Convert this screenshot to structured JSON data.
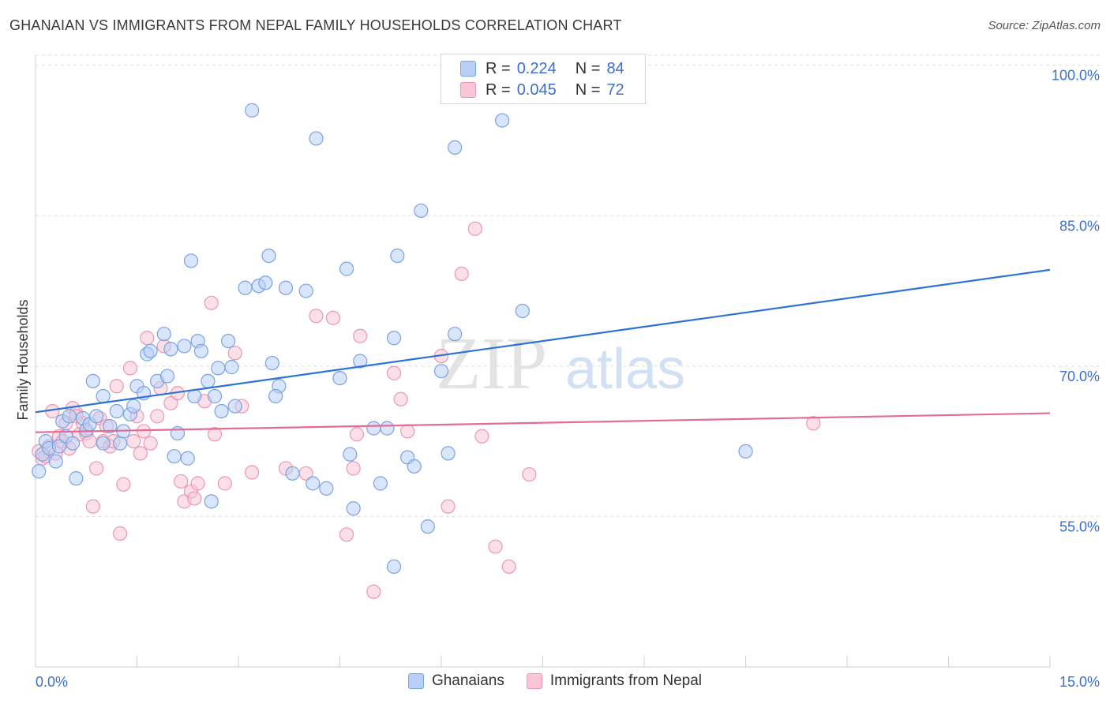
{
  "title": "GHANAIAN VS IMMIGRANTS FROM NEPAL FAMILY HOUSEHOLDS CORRELATION CHART",
  "source": "Source: ZipAtlas.com",
  "watermark": {
    "part1": "ZIP",
    "part2": "atlas"
  },
  "colors": {
    "blue_fill": "#b8d0f5",
    "blue_stroke": "#7aa3e0",
    "blue_line": "#2f72d6",
    "pink_fill": "#f8c6d6",
    "pink_stroke": "#eb97b4",
    "pink_line": "#e46b93",
    "axis_label": "#3b6fd0",
    "grid": "#dcdcdc"
  },
  "legend_top": {
    "rows": [
      {
        "r_label": "R =",
        "r_value": "0.224",
        "n_label": "N =",
        "n_value": "84"
      },
      {
        "r_label": "R =",
        "r_value": "0.045",
        "n_label": "N =",
        "n_value": "72"
      }
    ]
  },
  "chart_data": {
    "type": "scatter",
    "title": "GHANAIAN VS IMMIGRANTS FROM NEPAL FAMILY HOUSEHOLDS CORRELATION CHART",
    "xlabel": "",
    "ylabel": "Family Households",
    "xlim": [
      0.0,
      15.0
    ],
    "ylim": [
      40.0,
      101.0
    ],
    "x_tick_labels": [
      "0.0%",
      "15.0%"
    ],
    "y_ticks": [
      55.0,
      70.0,
      85.0,
      100.0
    ],
    "y_tick_labels": [
      "55.0%",
      "70.0%",
      "85.0%",
      "100.0%"
    ],
    "grid": true,
    "legend_position": "top-center",
    "series": [
      {
        "name": "Ghanaians",
        "color": "#b8d0f5",
        "trend": {
          "x": [
            0.0,
            15.0
          ],
          "y": [
            65.4,
            79.6
          ]
        },
        "points": [
          [
            0.05,
            59.5
          ],
          [
            0.1,
            61.2
          ],
          [
            0.15,
            62.5
          ],
          [
            0.2,
            61.8
          ],
          [
            0.3,
            60.5
          ],
          [
            0.35,
            62.0
          ],
          [
            0.4,
            64.5
          ],
          [
            0.45,
            63.0
          ],
          [
            0.5,
            65.0
          ],
          [
            0.55,
            62.3
          ],
          [
            0.6,
            58.8
          ],
          [
            0.7,
            64.8
          ],
          [
            0.75,
            63.6
          ],
          [
            0.8,
            64.2
          ],
          [
            0.85,
            68.5
          ],
          [
            0.9,
            65.0
          ],
          [
            1.0,
            62.3
          ],
          [
            1.0,
            67.0
          ],
          [
            1.1,
            64.0
          ],
          [
            1.2,
            65.5
          ],
          [
            1.25,
            62.3
          ],
          [
            1.3,
            63.5
          ],
          [
            1.4,
            65.2
          ],
          [
            1.45,
            66.0
          ],
          [
            1.5,
            68.0
          ],
          [
            1.6,
            67.3
          ],
          [
            1.65,
            71.2
          ],
          [
            1.7,
            71.5
          ],
          [
            1.8,
            68.5
          ],
          [
            1.9,
            73.2
          ],
          [
            1.95,
            69.0
          ],
          [
            2.0,
            71.7
          ],
          [
            2.05,
            61.0
          ],
          [
            2.1,
            63.3
          ],
          [
            2.2,
            72.0
          ],
          [
            2.25,
            60.8
          ],
          [
            2.3,
            80.5
          ],
          [
            2.35,
            67.0
          ],
          [
            2.4,
            72.5
          ],
          [
            2.45,
            71.5
          ],
          [
            2.55,
            68.5
          ],
          [
            2.6,
            56.5
          ],
          [
            2.65,
            67.0
          ],
          [
            2.7,
            69.8
          ],
          [
            2.75,
            65.5
          ],
          [
            2.85,
            72.5
          ],
          [
            2.9,
            69.9
          ],
          [
            2.95,
            66.0
          ],
          [
            3.1,
            77.8
          ],
          [
            3.2,
            95.5
          ],
          [
            3.3,
            78.0
          ],
          [
            3.4,
            78.3
          ],
          [
            3.45,
            81.0
          ],
          [
            3.5,
            70.3
          ],
          [
            3.6,
            68.0
          ],
          [
            3.55,
            67.0
          ],
          [
            3.7,
            77.8
          ],
          [
            3.8,
            59.3
          ],
          [
            4.0,
            77.5
          ],
          [
            4.1,
            58.3
          ],
          [
            4.15,
            92.7
          ],
          [
            4.3,
            57.8
          ],
          [
            4.5,
            68.8
          ],
          [
            4.6,
            79.7
          ],
          [
            4.65,
            61.2
          ],
          [
            4.7,
            55.8
          ],
          [
            4.8,
            70.5
          ],
          [
            5.0,
            63.8
          ],
          [
            5.1,
            58.3
          ],
          [
            5.2,
            63.8
          ],
          [
            5.3,
            72.8
          ],
          [
            5.35,
            81.0
          ],
          [
            5.5,
            60.9
          ],
          [
            5.6,
            60.0
          ],
          [
            5.7,
            85.5
          ],
          [
            5.8,
            54.0
          ],
          [
            6.0,
            69.5
          ],
          [
            6.1,
            61.3
          ],
          [
            6.2,
            73.2
          ],
          [
            6.2,
            91.8
          ],
          [
            6.9,
            94.5
          ],
          [
            7.2,
            75.5
          ],
          [
            10.5,
            61.5
          ],
          [
            5.3,
            50.0
          ]
        ]
      },
      {
        "name": "Immigrants from Nepal",
        "color": "#f8c6d6",
        "trend": {
          "x": [
            0.0,
            15.0
          ],
          "y": [
            63.4,
            65.3
          ]
        },
        "points": [
          [
            0.05,
            61.5
          ],
          [
            0.1,
            60.8
          ],
          [
            0.15,
            61.0
          ],
          [
            0.2,
            62.0
          ],
          [
            0.25,
            65.5
          ],
          [
            0.3,
            61.3
          ],
          [
            0.35,
            63.0
          ],
          [
            0.4,
            62.5
          ],
          [
            0.45,
            64.3
          ],
          [
            0.5,
            61.8
          ],
          [
            0.55,
            65.8
          ],
          [
            0.6,
            65.3
          ],
          [
            0.65,
            63.2
          ],
          [
            0.7,
            64.3
          ],
          [
            0.75,
            63.3
          ],
          [
            0.8,
            62.5
          ],
          [
            0.85,
            56.0
          ],
          [
            0.9,
            59.8
          ],
          [
            0.95,
            64.8
          ],
          [
            1.0,
            62.5
          ],
          [
            1.05,
            64.0
          ],
          [
            1.1,
            62.0
          ],
          [
            1.15,
            62.5
          ],
          [
            1.2,
            68.0
          ],
          [
            1.25,
            53.3
          ],
          [
            1.3,
            58.2
          ],
          [
            1.4,
            69.8
          ],
          [
            1.45,
            62.5
          ],
          [
            1.5,
            65.0
          ],
          [
            1.55,
            61.3
          ],
          [
            1.6,
            63.5
          ],
          [
            1.65,
            72.8
          ],
          [
            1.7,
            62.3
          ],
          [
            1.8,
            65.0
          ],
          [
            1.85,
            67.8
          ],
          [
            1.9,
            72.0
          ],
          [
            2.0,
            66.3
          ],
          [
            2.1,
            67.3
          ],
          [
            2.15,
            58.5
          ],
          [
            2.2,
            56.5
          ],
          [
            2.3,
            57.5
          ],
          [
            2.35,
            56.8
          ],
          [
            2.4,
            58.3
          ],
          [
            2.5,
            66.5
          ],
          [
            2.6,
            76.3
          ],
          [
            2.65,
            63.2
          ],
          [
            2.8,
            58.3
          ],
          [
            2.95,
            71.3
          ],
          [
            3.05,
            66.0
          ],
          [
            3.2,
            59.4
          ],
          [
            3.7,
            59.8
          ],
          [
            4.0,
            59.3
          ],
          [
            4.15,
            75.0
          ],
          [
            4.4,
            74.8
          ],
          [
            4.6,
            53.2
          ],
          [
            4.7,
            59.8
          ],
          [
            4.75,
            63.2
          ],
          [
            4.8,
            73.0
          ],
          [
            5.0,
            47.5
          ],
          [
            5.3,
            69.3
          ],
          [
            5.4,
            66.7
          ],
          [
            5.5,
            63.5
          ],
          [
            6.0,
            71.0
          ],
          [
            6.1,
            56.0
          ],
          [
            6.3,
            79.2
          ],
          [
            6.5,
            83.7
          ],
          [
            6.6,
            63.0
          ],
          [
            6.8,
            52.0
          ],
          [
            7.0,
            50.0
          ],
          [
            7.3,
            59.2
          ],
          [
            11.5,
            64.3
          ],
          [
            0.6,
            65.0
          ]
        ]
      }
    ]
  },
  "legend_bottom": [
    {
      "label": "Ghanaians"
    },
    {
      "label": "Immigrants from Nepal"
    }
  ]
}
